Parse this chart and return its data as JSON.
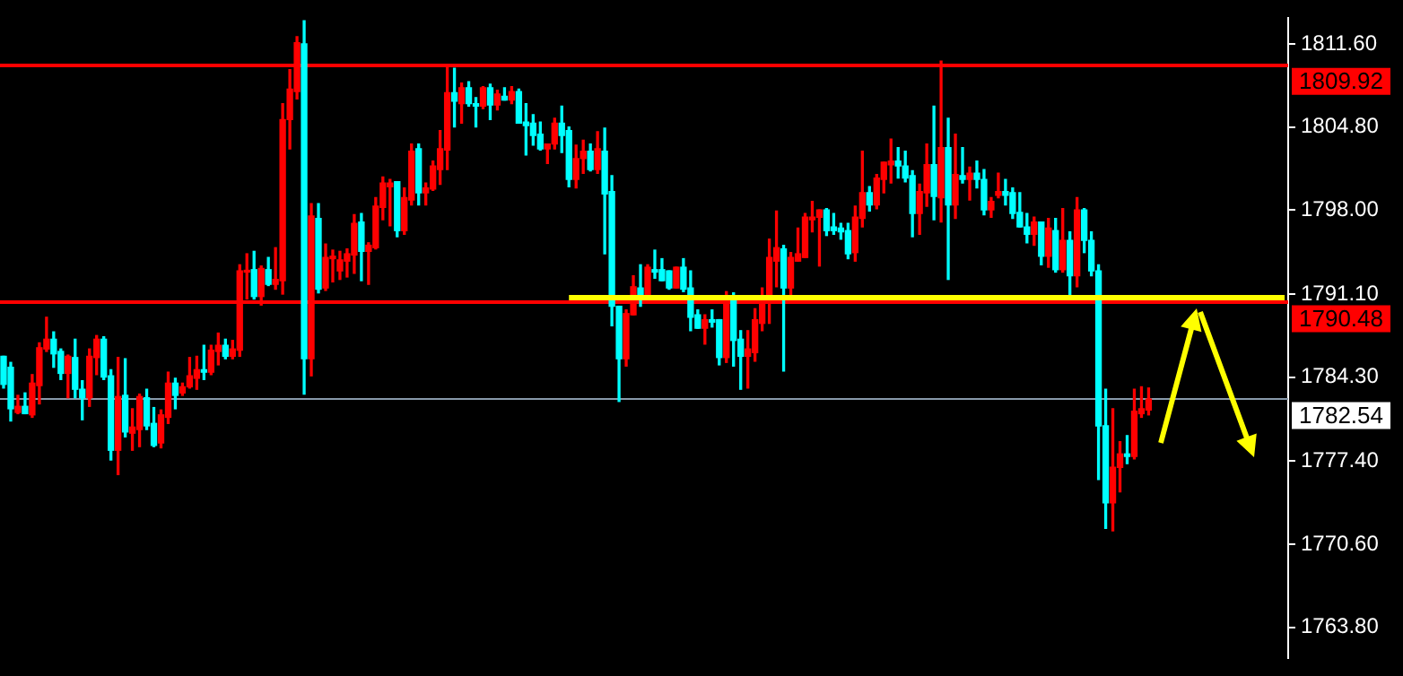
{
  "chart_data": {
    "type": "candlestick",
    "categories": [
      null,
      null,
      null,
      null,
      null,
      null,
      null,
      null,
      null,
      null,
      null,
      null,
      null,
      null,
      null,
      null,
      null,
      null,
      null,
      null,
      null,
      null,
      null,
      null,
      null,
      null,
      null,
      null,
      null,
      null,
      null,
      null,
      null,
      null,
      null,
      null,
      null,
      null,
      null,
      null,
      null,
      null,
      null,
      null,
      null,
      null,
      null,
      null,
      null,
      null,
      null,
      null,
      null,
      null,
      null,
      null,
      null,
      null,
      null,
      null,
      null,
      null,
      null,
      null,
      null,
      null,
      null,
      null,
      null,
      null,
      null,
      null,
      null,
      null,
      null,
      null,
      null,
      null,
      null,
      null,
      null,
      null,
      null,
      null,
      null,
      null,
      null,
      null,
      null,
      null,
      null,
      null,
      null,
      null,
      null,
      null,
      null,
      null,
      null,
      null,
      null,
      null,
      null,
      null,
      null,
      null,
      null,
      null,
      null,
      null,
      null,
      null,
      null,
      null,
      null,
      null,
      null,
      null,
      null,
      null,
      null,
      null,
      null,
      null,
      null,
      null,
      null,
      null,
      null,
      null,
      null,
      null,
      null,
      null,
      null,
      null,
      null,
      null,
      null,
      null,
      null,
      null,
      null,
      null,
      null,
      null,
      null,
      null,
      null,
      null,
      null,
      null,
      null,
      null,
      null,
      null,
      null,
      null,
      null,
      null,
      null,
      null,
      null,
      null,
      null,
      null,
      null,
      null,
      null,
      null,
      null,
      null,
      null,
      null,
      null,
      null,
      null,
      null,
      null,
      null
    ],
    "ohlc": [
      [
        1786.0,
        1786.0,
        1783.4,
        1783.7
      ],
      [
        1785.1,
        1785.5,
        1780.7,
        1781.7
      ],
      [
        1781.4,
        1782.8,
        1781.3,
        1781.9
      ],
      [
        1781.9,
        1783.0,
        1781.3,
        1781.3
      ],
      [
        1781.2,
        1784.5,
        1781.0,
        1783.8
      ],
      [
        1783.6,
        1787.1,
        1782.1,
        1786.7
      ],
      [
        1786.6,
        1789.2,
        1786.4,
        1787.4
      ],
      [
        1787.4,
        1788.0,
        1785.1,
        1786.2
      ],
      [
        1786.4,
        1786.6,
        1784.1,
        1784.6
      ],
      [
        1784.6,
        1786.1,
        1782.6,
        1786.0
      ],
      [
        1785.9,
        1787.4,
        1782.6,
        1783.3
      ],
      [
        1783.3,
        1784.0,
        1780.8,
        1782.6
      ],
      [
        1782.6,
        1786.6,
        1781.9,
        1786.0
      ],
      [
        1785.9,
        1787.7,
        1784.5,
        1787.4
      ],
      [
        1787.4,
        1787.6,
        1784.1,
        1784.3
      ],
      [
        1784.4,
        1784.9,
        1777.5,
        1778.3
      ],
      [
        1778.3,
        1785.9,
        1776.3,
        1782.7
      ],
      [
        1782.8,
        1785.8,
        1779.4,
        1779.8
      ],
      [
        1779.7,
        1781.7,
        1778.3,
        1780.2
      ],
      [
        1780.0,
        1782.9,
        1778.6,
        1782.7
      ],
      [
        1782.6,
        1783.3,
        1780.0,
        1780.3
      ],
      [
        1780.5,
        1781.8,
        1778.6,
        1778.7
      ],
      [
        1778.9,
        1781.6,
        1778.5,
        1781.2
      ],
      [
        1781.0,
        1784.7,
        1780.5,
        1783.8
      ],
      [
        1783.8,
        1784.2,
        1781.7,
        1782.8
      ],
      [
        1783.0,
        1783.8,
        1782.8,
        1783.5
      ],
      [
        1783.5,
        1785.9,
        1783.4,
        1784.4
      ],
      [
        1784.2,
        1786.0,
        1783.3,
        1784.9
      ],
      [
        1784.9,
        1786.9,
        1784.1,
        1784.7
      ],
      [
        1784.7,
        1786.9,
        1784.5,
        1786.5
      ],
      [
        1786.4,
        1787.9,
        1785.3,
        1786.9
      ],
      [
        1786.9,
        1787.4,
        1785.8,
        1786.0
      ],
      [
        1786.0,
        1787.3,
        1785.8,
        1786.6
      ],
      [
        1786.5,
        1793.5,
        1786.0,
        1793.0
      ],
      [
        1792.9,
        1794.4,
        1790.7,
        1793.0
      ],
      [
        1793.1,
        1794.6,
        1790.7,
        1790.9
      ],
      [
        1790.9,
        1793.4,
        1790.2,
        1793.2
      ],
      [
        1793.1,
        1794.1,
        1791.8,
        1791.9
      ],
      [
        1791.9,
        1794.9,
        1791.5,
        1792.3
      ],
      [
        1792.2,
        1806.7,
        1791.1,
        1805.4
      ],
      [
        1805.4,
        1809.5,
        1803.0,
        1807.9
      ],
      [
        1807.7,
        1812.2,
        1807.1,
        1811.7
      ],
      [
        1811.6,
        1813.5,
        1782.9,
        1785.8
      ],
      [
        1785.8,
        1798.5,
        1784.4,
        1797.5
      ],
      [
        1797.3,
        1798.5,
        1791.2,
        1791.5
      ],
      [
        1791.6,
        1795.2,
        1791.4,
        1794.1
      ],
      [
        1794.0,
        1794.7,
        1792.1,
        1794.2
      ],
      [
        1793.0,
        1794.6,
        1792.3,
        1793.9
      ],
      [
        1793.8,
        1794.8,
        1792.5,
        1794.4
      ],
      [
        1794.3,
        1797.6,
        1792.8,
        1796.9
      ],
      [
        1797.0,
        1797.7,
        1792.2,
        1794.6
      ],
      [
        1794.6,
        1795.3,
        1791.9,
        1795.1
      ],
      [
        1794.9,
        1799.0,
        1794.8,
        1798.3
      ],
      [
        1798.2,
        1800.7,
        1797.2,
        1800.2
      ],
      [
        1799.9,
        1800.5,
        1796.7,
        1800.2
      ],
      [
        1800.3,
        1800.3,
        1795.8,
        1796.3
      ],
      [
        1796.3,
        1799.8,
        1796.0,
        1799.0
      ],
      [
        1798.8,
        1803.4,
        1798.4,
        1802.8
      ],
      [
        1803.0,
        1803.4,
        1798.4,
        1799.4
      ],
      [
        1799.4,
        1800.2,
        1798.4,
        1799.8
      ],
      [
        1799.7,
        1802.0,
        1799.6,
        1801.6
      ],
      [
        1801.3,
        1804.5,
        1800.1,
        1803.0
      ],
      [
        1802.9,
        1809.7,
        1801.3,
        1807.6
      ],
      [
        1807.6,
        1809.6,
        1804.8,
        1806.9
      ],
      [
        1806.7,
        1808.4,
        1805.1,
        1808.0
      ],
      [
        1808.0,
        1808.5,
        1806.5,
        1806.7
      ],
      [
        1806.7,
        1807.2,
        1804.8,
        1806.5
      ],
      [
        1806.5,
        1808.1,
        1806.3,
        1808.0
      ],
      [
        1808.0,
        1808.3,
        1805.4,
        1806.6
      ],
      [
        1806.6,
        1807.8,
        1806.2,
        1807.5
      ],
      [
        1807.3,
        1808.0,
        1807.0,
        1807.0
      ],
      [
        1807.0,
        1808.1,
        1806.7,
        1807.7
      ],
      [
        1807.7,
        1807.9,
        1805.1,
        1805.1
      ],
      [
        1805.2,
        1806.7,
        1802.5,
        1804.9
      ],
      [
        1805.1,
        1805.8,
        1803.3,
        1804.1
      ],
      [
        1804.2,
        1805.2,
        1802.9,
        1803.0
      ],
      [
        1803.0,
        1803.4,
        1801.8,
        1803.4
      ],
      [
        1803.4,
        1805.5,
        1803.0,
        1805.1
      ],
      [
        1805.1,
        1806.5,
        1802.7,
        1804.1
      ],
      [
        1804.5,
        1804.8,
        1799.9,
        1800.5
      ],
      [
        1800.5,
        1803.3,
        1799.8,
        1802.2
      ],
      [
        1802.2,
        1803.7,
        1801.0,
        1802.8
      ],
      [
        1802.8,
        1803.4,
        1801.2,
        1801.3
      ],
      [
        1801.3,
        1804.4,
        1801.0,
        1803.0
      ],
      [
        1802.8,
        1804.7,
        1794.4,
        1799.3
      ],
      [
        1799.5,
        1800.8,
        1788.5,
        1790.1
      ],
      [
        1790.1,
        1790.1,
        1782.3,
        1785.8
      ],
      [
        1785.8,
        1789.8,
        1785.2,
        1789.5
      ],
      [
        1789.4,
        1792.6,
        1789.4,
        1791.7
      ],
      [
        1791.6,
        1793.5,
        1790.1,
        1790.8
      ],
      [
        1790.8,
        1793.5,
        1790.8,
        1793.3
      ],
      [
        1793.1,
        1794.7,
        1792.4,
        1792.9
      ],
      [
        1793.1,
        1794.0,
        1792.2,
        1792.2
      ],
      [
        1793.0,
        1793.0,
        1791.5,
        1791.6
      ],
      [
        1791.6,
        1793.3,
        1791.6,
        1793.3
      ],
      [
        1793.3,
        1794.0,
        1791.3,
        1791.5
      ],
      [
        1791.6,
        1793.0,
        1788.1,
        1789.2
      ],
      [
        1789.4,
        1789.8,
        1788.3,
        1788.3
      ],
      [
        1788.3,
        1789.4,
        1787.0,
        1789.0
      ],
      [
        1789.0,
        1789.8,
        1788.4,
        1788.8
      ],
      [
        1789.0,
        1789.0,
        1785.3,
        1785.9
      ],
      [
        1785.9,
        1791.3,
        1785.5,
        1790.6
      ],
      [
        1790.6,
        1791.2,
        1785.2,
        1787.3
      ],
      [
        1787.4,
        1788.1,
        1783.3,
        1786.0
      ],
      [
        1786.0,
        1788.1,
        1783.4,
        1786.6
      ],
      [
        1786.3,
        1789.9,
        1785.6,
        1789.0
      ],
      [
        1788.7,
        1791.6,
        1788.1,
        1790.9
      ],
      [
        1790.8,
        1795.6,
        1788.7,
        1794.1
      ],
      [
        1793.8,
        1797.9,
        1791.7,
        1794.9
      ],
      [
        1794.8,
        1795.1,
        1784.8,
        1791.6
      ],
      [
        1791.6,
        1794.5,
        1790.8,
        1794.1
      ],
      [
        1793.8,
        1796.5,
        1793.8,
        1794.4
      ],
      [
        1794.1,
        1797.7,
        1794.1,
        1797.4
      ],
      [
        1797.2,
        1798.7,
        1796.2,
        1797.4
      ],
      [
        1797.4,
        1798.0,
        1793.4,
        1798.0
      ],
      [
        1798.0,
        1798.1,
        1795.9,
        1796.3
      ],
      [
        1796.6,
        1797.7,
        1796.0,
        1796.3
      ],
      [
        1796.5,
        1796.9,
        1795.6,
        1796.2
      ],
      [
        1796.3,
        1796.9,
        1794.0,
        1794.4
      ],
      [
        1794.5,
        1798.3,
        1793.8,
        1797.4
      ],
      [
        1797.3,
        1802.8,
        1796.6,
        1799.4
      ],
      [
        1799.4,
        1799.9,
        1797.9,
        1798.4
      ],
      [
        1798.4,
        1800.9,
        1798.1,
        1800.6
      ],
      [
        1800.5,
        1801.9,
        1799.4,
        1801.9
      ],
      [
        1801.7,
        1803.8,
        1800.2,
        1802.0
      ],
      [
        1802.0,
        1803.1,
        1800.6,
        1801.6
      ],
      [
        1801.6,
        1802.8,
        1800.3,
        1800.6
      ],
      [
        1800.8,
        1801.2,
        1795.8,
        1797.7
      ],
      [
        1797.7,
        1800.1,
        1796.0,
        1799.5
      ],
      [
        1799.4,
        1803.4,
        1798.3,
        1801.7
      ],
      [
        1801.7,
        1806.5,
        1797.2,
        1799.1
      ],
      [
        1799.0,
        1810.2,
        1797.0,
        1803.1
      ],
      [
        1803.1,
        1805.5,
        1792.3,
        1798.4
      ],
      [
        1798.4,
        1804.2,
        1797.3,
        1800.9
      ],
      [
        1800.8,
        1803.1,
        1800.2,
        1800.5
      ],
      [
        1800.5,
        1801.5,
        1798.8,
        1801.0
      ],
      [
        1801.0,
        1802.0,
        1799.8,
        1800.5
      ],
      [
        1800.5,
        1801.3,
        1797.6,
        1798.0
      ],
      [
        1798.0,
        1799.0,
        1797.4,
        1798.7
      ],
      [
        1799.2,
        1801.0,
        1799.0,
        1799.5
      ],
      [
        1799.5,
        1800.5,
        1798.4,
        1799.2
      ],
      [
        1799.4,
        1799.8,
        1797.3,
        1797.7
      ],
      [
        1797.8,
        1799.4,
        1796.6,
        1796.6
      ],
      [
        1796.6,
        1797.7,
        1795.3,
        1796.0
      ],
      [
        1796.0,
        1797.4,
        1795.1,
        1797.0
      ],
      [
        1797.0,
        1797.0,
        1793.5,
        1794.2
      ],
      [
        1794.2,
        1797.3,
        1793.3,
        1796.5
      ],
      [
        1796.3,
        1797.3,
        1792.9,
        1793.1
      ],
      [
        1793.1,
        1798.1,
        1792.9,
        1795.5
      ],
      [
        1795.5,
        1796.2,
        1790.8,
        1792.6
      ],
      [
        1792.6,
        1799.0,
        1791.7,
        1798.0
      ],
      [
        1798.0,
        1798.1,
        1794.5,
        1795.5
      ],
      [
        1795.5,
        1796.2,
        1792.6,
        1793.0
      ],
      [
        1793.0,
        1793.5,
        1775.9,
        1780.3
      ],
      [
        1780.3,
        1783.3,
        1771.9,
        1774.0
      ],
      [
        1774.0,
        1781.7,
        1771.7,
        1776.9
      ],
      [
        1776.9,
        1779.0,
        1774.9,
        1778.0
      ],
      [
        1778.0,
        1779.5,
        1777.2,
        1777.8
      ],
      [
        1777.8,
        1783.3,
        1777.6,
        1781.5
      ],
      [
        1781.3,
        1783.5,
        1781.0,
        1781.7
      ],
      [
        1781.6,
        1783.4,
        1781.2,
        1782.5
      ],
      null,
      null,
      null,
      null,
      null,
      null,
      null,
      null,
      null,
      null,
      null,
      null,
      null,
      null,
      null,
      null,
      null,
      null,
      null
    ],
    "colors": [
      "#00ffff",
      "#00ffff",
      "#ff0000",
      "#00ffff",
      "#ff0000",
      "#ff0000",
      "#ff0000",
      "#00ffff",
      "#00ffff",
      "#ff0000",
      "#00ffff",
      "#00ffff",
      "#ff0000",
      "#ff0000",
      "#00ffff",
      "#00ffff",
      "#ff0000",
      "#00ffff",
      "#ff0000",
      "#ff0000",
      "#00ffff",
      "#00ffff",
      "#ff0000",
      "#ff0000",
      "#00ffff",
      "#ff0000",
      "#ff0000",
      "#ff0000",
      "#00ffff",
      "#ff0000",
      "#ff0000",
      "#00ffff",
      "#ff0000",
      "#ff0000",
      "#ff0000",
      "#00ffff",
      "#ff0000",
      "#00ffff",
      "#ff0000",
      "#ff0000",
      "#ff0000",
      "#ff0000",
      "#00ffff",
      "#ff0000",
      "#00ffff",
      "#ff0000",
      "#ff0000",
      "#ff0000",
      "#ff0000",
      "#ff0000",
      "#00ffff",
      "#ff0000",
      "#ff0000",
      "#ff0000",
      "#ff0000",
      "#00ffff",
      "#ff0000",
      "#ff0000",
      "#00ffff",
      "#ff0000",
      "#ff0000",
      "#ff0000",
      "#ff0000",
      "#00ffff",
      "#ff0000",
      "#00ffff",
      "#00ffff",
      "#ff0000",
      "#00ffff",
      "#ff0000",
      "#00ffff",
      "#ff0000",
      "#00ffff",
      "#00ffff",
      "#00ffff",
      "#00ffff",
      "#ff0000",
      "#ff0000",
      "#00ffff",
      "#00ffff",
      "#ff0000",
      "#ff0000",
      "#00ffff",
      "#ff0000",
      "#00ffff",
      "#00ffff",
      "#00ffff",
      "#ff0000",
      "#ff0000",
      "#00ffff",
      "#ff0000",
      "#00ffff",
      "#00ffff",
      "#00ffff",
      "#ff0000",
      "#00ffff",
      "#00ffff",
      "#00ffff",
      "#ff0000",
      "#00ffff",
      "#00ffff",
      "#ff0000",
      "#00ffff",
      "#00ffff",
      "#ff0000",
      "#ff0000",
      "#ff0000",
      "#ff0000",
      "#ff0000",
      "#00ffff",
      "#ff0000",
      "#ff0000",
      "#ff0000",
      "#ff0000",
      "#ff0000",
      "#00ffff",
      "#00ffff",
      "#00ffff",
      "#00ffff",
      "#ff0000",
      "#ff0000",
      "#00ffff",
      "#ff0000",
      "#ff0000",
      "#ff0000",
      "#00ffff",
      "#00ffff",
      "#00ffff",
      "#ff0000",
      "#ff0000",
      "#00ffff",
      "#ff0000",
      "#00ffff",
      "#ff0000",
      "#00ffff",
      "#ff0000",
      "#00ffff",
      "#00ffff",
      "#ff0000",
      "#ff0000",
      "#00ffff",
      "#00ffff",
      "#00ffff",
      "#00ffff",
      "#ff0000",
      "#00ffff",
      "#ff0000",
      "#00ffff",
      "#ff0000",
      "#00ffff",
      "#ff0000",
      "#00ffff",
      "#00ffff",
      "#00ffff",
      "#00ffff",
      "#ff0000",
      "#ff0000",
      "#00ffff",
      "#ff0000",
      "#ff0000",
      "#ff0000",
      null,
      null,
      null,
      null,
      null,
      null,
      null,
      null,
      null,
      null,
      null,
      null,
      null,
      null,
      null,
      null,
      null,
      null,
      null
    ],
    "series": [
      {
        "type": "line",
        "color": "#ffff00",
        "values": [
          null,
          null,
          null,
          null,
          null,
          null,
          null,
          null,
          null,
          null,
          null,
          null,
          null,
          null,
          null,
          null,
          null,
          null,
          null,
          null,
          null,
          null,
          null,
          null,
          null,
          null,
          null,
          null,
          null,
          null,
          null,
          null,
          null,
          null,
          null,
          null,
          null,
          null,
          null,
          null,
          null,
          null,
          null,
          null,
          null,
          null,
          null,
          null,
          null,
          null,
          null,
          null,
          null,
          null,
          null,
          null,
          null,
          null,
          null,
          null,
          null,
          null,
          null,
          null,
          null,
          null,
          null,
          null,
          null,
          null,
          null,
          null,
          null,
          null,
          null,
          null,
          null,
          null,
          null,
          1790.8,
          1790.8,
          1790.8,
          1790.8,
          1790.8,
          1790.8,
          1790.8,
          1790.8,
          1790.8,
          1790.8,
          1790.8,
          1790.8,
          1790.8,
          1790.8,
          1790.8,
          1790.8,
          1790.8,
          1790.8,
          1790.8,
          1790.8,
          1790.8,
          1790.8,
          1790.8,
          1790.8,
          1790.8,
          1790.8,
          1790.8,
          1790.8,
          1790.8,
          1790.8,
          1790.8,
          1790.8,
          1790.8,
          1790.8,
          1790.8,
          1790.8,
          1790.8,
          1790.8,
          1790.8,
          1790.8,
          1790.8,
          1790.8,
          1790.8,
          1790.8,
          1790.8,
          1790.8,
          1790.8,
          1790.8,
          1790.8,
          1790.8,
          1790.8,
          1790.8,
          1790.8,
          1790.8,
          1790.8,
          1790.8,
          1790.8,
          1790.8,
          1790.8,
          1790.8,
          1790.8,
          1790.8,
          1790.8,
          1790.8,
          1790.8,
          1790.8,
          1790.8,
          1790.8,
          1790.8,
          1790.8,
          1790.8,
          1790.8,
          1790.8,
          1790.8,
          1790.8,
          1790.8,
          1790.8,
          1790.8,
          1790.8,
          1790.8,
          1790.8,
          1790.8,
          1790.8,
          1790.8,
          1790.8,
          1790.8,
          1790.8,
          1790.8,
          1790.8,
          1790.8,
          1790.8,
          1790.8,
          1790.8,
          1790.8,
          1790.8,
          1790.8,
          1790.8,
          1790.8,
          1790.8,
          1790.8,
          1790.8
        ]
      }
    ],
    "ylim": [
      1761.3,
      1813.7
    ],
    "yticks": [
      {
        "value": 1763.8,
        "label": "1763.80"
      },
      {
        "value": 1770.6,
        "label": "1770.60"
      },
      {
        "value": 1777.4,
        "label": "1777.40"
      },
      {
        "value": 1784.3,
        "label": "1784.30"
      },
      {
        "value": 1791.1,
        "label": "1791.10"
      },
      {
        "value": 1798.0,
        "label": "1798.00"
      },
      {
        "value": 1804.8,
        "label": "1804.80"
      },
      {
        "value": 1811.6,
        "label": "1811.60"
      }
    ],
    "ref_lines": [
      {
        "axis": "y",
        "value": 1809.92,
        "label": "1809.92",
        "color": "#ff0000"
      },
      {
        "axis": "y",
        "value": 1790.48,
        "label": "1790.48",
        "color": "#ff0000"
      },
      {
        "axis": "y",
        "value": 1782.54,
        "label": "1782.54",
        "color": "#8899aa"
      }
    ],
    "tick_labels": "y"
  }
}
